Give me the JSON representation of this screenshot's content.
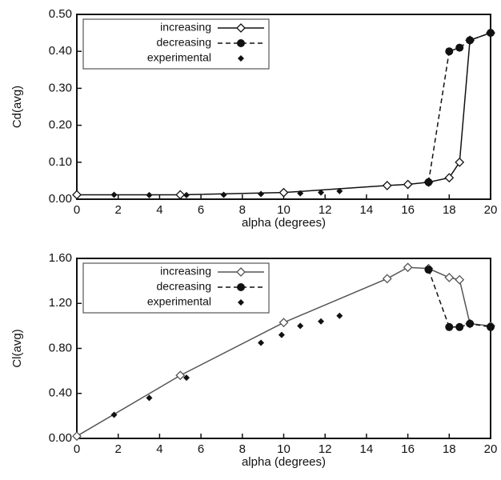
{
  "chart_data": [
    {
      "type": "line",
      "ylabel": "Cd(avg)",
      "xlabel": "alpha (degrees)",
      "xlim": [
        0,
        20
      ],
      "xticks": [
        0,
        2,
        4,
        6,
        8,
        10,
        12,
        14,
        16,
        18,
        20
      ],
      "ylim": [
        0,
        0.5
      ],
      "yticks": [
        {
          "value": 0,
          "label": "0.00"
        },
        {
          "value": 0.1,
          "label": "0.10"
        },
        {
          "value": 0.2,
          "label": "0.20"
        },
        {
          "value": 0.3,
          "label": "0.30"
        },
        {
          "value": 0.4,
          "label": "0.40"
        },
        {
          "value": 0.5,
          "label": "0.50"
        }
      ],
      "legend": "upper left",
      "series": [
        {
          "name": "increasing",
          "color": "#111",
          "marker": "open-diamond",
          "line": "solid",
          "x": [
            0,
            5,
            10,
            15,
            16,
            17,
            18,
            18.5,
            19,
            20
          ],
          "values": [
            0.012,
            0.012,
            0.018,
            0.037,
            0.04,
            0.046,
            0.058,
            0.1,
            0.43,
            0.45
          ]
        },
        {
          "name": "decreasing",
          "color": "#111",
          "marker": "filled-circle",
          "line": "dashed",
          "x": [
            17,
            18,
            18.5,
            19,
            20
          ],
          "values": [
            0.046,
            0.4,
            0.41,
            0.43,
            0.45
          ]
        },
        {
          "name": "experimental",
          "color": "#111",
          "marker": "filled-diamond",
          "line": "none",
          "x": [
            1.8,
            3.5,
            5.3,
            7.1,
            8.9,
            10.8,
            11.8,
            12.7
          ],
          "values": [
            0.012,
            0.011,
            0.011,
            0.012,
            0.014,
            0.016,
            0.018,
            0.022
          ]
        }
      ]
    },
    {
      "type": "line",
      "ylabel": "Cl(avg)",
      "xlabel": "alpha (degrees)",
      "xlim": [
        0,
        20
      ],
      "xticks": [
        0,
        2,
        4,
        6,
        8,
        10,
        12,
        14,
        16,
        18,
        20
      ],
      "ylim": [
        0,
        1.6
      ],
      "yticks": [
        {
          "value": 0,
          "label": "0.00"
        },
        {
          "value": 0.4,
          "label": "0.40"
        },
        {
          "value": 0.8,
          "label": "0.80"
        },
        {
          "value": 1.2,
          "label": "1.20"
        },
        {
          "value": 1.6,
          "label": "1.60"
        }
      ],
      "legend": "upper left",
      "series": [
        {
          "name": "increasing",
          "color": "#555",
          "marker": "open-diamond",
          "line": "solid",
          "x": [
            0,
            5,
            10,
            15,
            16,
            17,
            18,
            18.5,
            19,
            20
          ],
          "values": [
            0.02,
            0.56,
            1.03,
            1.42,
            1.52,
            1.51,
            1.43,
            1.41,
            1.02,
            1.0
          ]
        },
        {
          "name": "decreasing",
          "color": "#111",
          "marker": "filled-circle",
          "line": "dashed",
          "x": [
            17,
            18,
            18.5,
            19,
            20
          ],
          "values": [
            1.5,
            0.99,
            0.99,
            1.02,
            0.99
          ]
        },
        {
          "name": "experimental",
          "color": "#111",
          "marker": "filled-diamond",
          "line": "none",
          "x": [
            1.8,
            3.5,
            5.3,
            8.9,
            9.9,
            10.8,
            11.8,
            12.7
          ],
          "values": [
            0.21,
            0.36,
            0.54,
            0.85,
            0.92,
            1.0,
            1.04,
            1.09
          ]
        }
      ]
    }
  ]
}
